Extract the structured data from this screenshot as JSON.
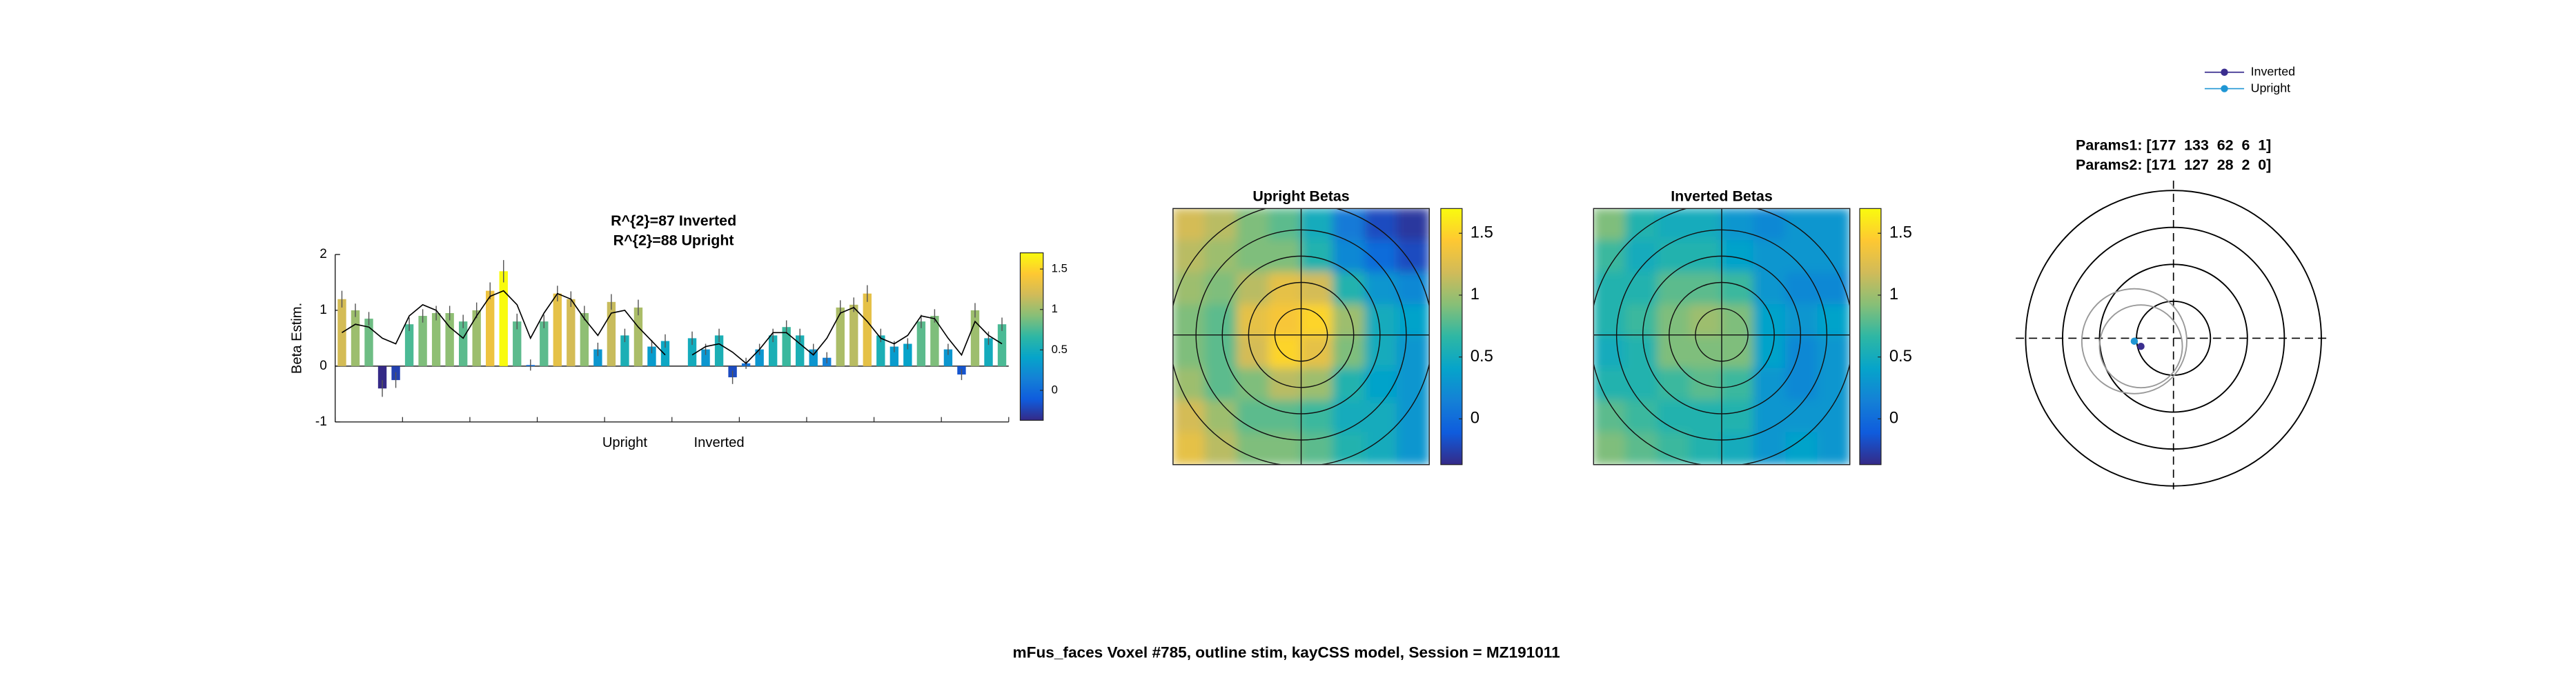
{
  "suptitle": "mFus_faces Voxel #785, outline stim, kayCSS model, Session = MZ191011",
  "chart_data": [
    {
      "type": "bar",
      "title": [
        "R^{2}=87 Inverted",
        "R^{2}=88 Upright"
      ],
      "ylabel": "Beta Estim.",
      "categories": [
        null,
        null,
        null,
        null,
        null,
        null,
        null,
        null,
        null,
        null,
        null,
        null,
        null,
        null,
        null,
        null,
        null,
        null,
        null,
        null,
        null,
        "Upright",
        null,
        null,
        null,
        null,
        null,
        null,
        "Inverted",
        null,
        null,
        null,
        null,
        null,
        null,
        null,
        null,
        null,
        null,
        null,
        null,
        null,
        null,
        null,
        null,
        null,
        null,
        null,
        null,
        null
      ],
      "series": [
        {
          "values": [
            1.2,
            1.0,
            0.85,
            -0.4,
            -0.25,
            0.75,
            0.9,
            0.95,
            0.95,
            0.8,
            1.0,
            1.35,
            1.7,
            0.8,
            0.02,
            0.8,
            1.3,
            1.2,
            0.95,
            0.3,
            1.15,
            0.55,
            1.05,
            0.35,
            0.45,
            null,
            0.5,
            0.3,
            0.55,
            -0.2,
            0.05,
            0.3,
            0.55,
            0.7,
            0.55,
            0.3,
            0.15,
            1.05,
            1.1,
            1.3,
            0.55,
            0.35,
            0.4,
            0.8,
            0.9,
            0.3,
            -0.15,
            1.0,
            0.5,
            0.75
          ],
          "errors": [
            0.15,
            0.12,
            0.12,
            0.15,
            0.14,
            0.12,
            0.12,
            0.13,
            0.13,
            0.12,
            0.14,
            0.15,
            0.2,
            0.14,
            0.1,
            0.12,
            0.14,
            0.14,
            0.13,
            0.12,
            0.14,
            0.12,
            0.14,
            0.12,
            0.12,
            null,
            0.12,
            0.1,
            0.12,
            0.12,
            0.1,
            0.1,
            0.12,
            0.12,
            0.12,
            0.1,
            0.1,
            0.13,
            0.13,
            0.15,
            0.12,
            0.1,
            0.1,
            0.12,
            0.12,
            0.1,
            0.1,
            0.13,
            0.12,
            0.12
          ]
        }
      ],
      "fit": {
        "color": "#000000",
        "values": [
          0.6,
          0.75,
          0.7,
          0.5,
          0.4,
          0.9,
          1.1,
          1.0,
          0.7,
          0.5,
          0.9,
          1.25,
          1.35,
          1.1,
          0.5,
          0.95,
          1.3,
          1.2,
          0.85,
          0.55,
          0.95,
          1.0,
          0.7,
          0.45,
          0.2,
          null,
          0.2,
          0.35,
          0.4,
          0.25,
          0.05,
          0.3,
          0.6,
          0.6,
          0.4,
          0.2,
          0.5,
          0.95,
          1.05,
          0.8,
          0.5,
          0.4,
          0.55,
          0.9,
          0.85,
          0.5,
          0.2,
          0.8,
          0.55,
          0.4
        ]
      },
      "ylim": [
        -1,
        2
      ],
      "yticks": [
        2,
        1,
        0,
        -1
      ],
      "colorbar": {
        "clim": [
          -0.37,
          1.7
        ],
        "ticks": [
          1.5,
          1,
          0.5,
          0
        ]
      },
      "colormap": [
        "#352a87",
        "#0f5cdd",
        "#1481d6",
        "#06a4ca",
        "#2eb7a4",
        "#87bf77",
        "#d1bb59",
        "#fec832",
        "#f9fb0e"
      ]
    },
    {
      "type": "heatmap",
      "title": "Upright Betas",
      "values": [
        [
          1.2,
          1.1,
          0.9,
          0.8,
          0.5,
          0.1,
          -0.2,
          -0.3
        ],
        [
          1.1,
          1.0,
          0.9,
          0.9,
          0.6,
          0.2,
          0.0,
          -0.2
        ],
        [
          1.0,
          0.9,
          1.1,
          1.3,
          1.2,
          0.6,
          0.3,
          0.2
        ],
        [
          0.9,
          0.8,
          1.3,
          1.4,
          1.5,
          1.0,
          0.5,
          0.4
        ],
        [
          0.9,
          0.8,
          1.2,
          1.5,
          1.3,
          0.9,
          0.5,
          0.3
        ],
        [
          1.0,
          0.8,
          0.9,
          1.1,
          1.0,
          0.6,
          0.4,
          0.3
        ],
        [
          1.2,
          1.0,
          0.8,
          0.8,
          0.7,
          0.5,
          0.5,
          0.3
        ],
        [
          1.3,
          1.1,
          0.9,
          0.9,
          0.8,
          0.6,
          0.5,
          0.3
        ]
      ],
      "colorbar": {
        "clim": [
          -0.37,
          1.7
        ],
        "ticks": [
          1.5,
          1,
          0.5,
          0
        ]
      },
      "colormap": [
        "#352a87",
        "#0f5cdd",
        "#1481d6",
        "#06a4ca",
        "#2eb7a4",
        "#87bf77",
        "#d1bb59",
        "#fec832",
        "#f9fb0e"
      ]
    },
    {
      "type": "heatmap",
      "title": "Inverted Betas",
      "values": [
        [
          0.9,
          0.6,
          0.5,
          0.5,
          0.3,
          0.2,
          0.3,
          0.3
        ],
        [
          0.7,
          0.5,
          0.6,
          0.6,
          0.4,
          0.3,
          0.3,
          0.3
        ],
        [
          0.6,
          0.6,
          0.8,
          0.8,
          0.7,
          0.3,
          0.2,
          0.2
        ],
        [
          0.6,
          0.7,
          0.9,
          1.0,
          0.9,
          0.4,
          0.3,
          0.4
        ],
        [
          0.5,
          0.6,
          0.9,
          0.9,
          0.9,
          0.4,
          0.2,
          0.3
        ],
        [
          0.6,
          0.6,
          0.7,
          0.8,
          0.7,
          0.3,
          0.2,
          0.3
        ],
        [
          0.8,
          0.7,
          0.6,
          0.6,
          0.6,
          0.3,
          0.3,
          0.3
        ],
        [
          0.9,
          0.8,
          0.7,
          0.6,
          0.5,
          0.3,
          0.4,
          0.3
        ]
      ],
      "colorbar": {
        "clim": [
          -0.37,
          1.7
        ],
        "ticks": [
          1.5,
          1,
          0.5,
          0
        ]
      },
      "colormap": [
        "#352a87",
        "#0f5cdd",
        "#1481d6",
        "#06a4ca",
        "#2eb7a4",
        "#87bf77",
        "#d1bb59",
        "#fec832",
        "#f9fb0e"
      ]
    },
    {
      "type": "polar",
      "title": [
        "Params1: [177  133  62  6  1]",
        "Params2: [171  127  28  2  0]"
      ],
      "series": [
        {
          "name": "Inverted",
          "color": "#3b2e8f",
          "x": [
            -4.4
          ],
          "y": [
            -1.1
          ],
          "size": [
            5.6
          ]
        },
        {
          "name": "Upright",
          "color": "#1f96d4",
          "x": [
            -5.3
          ],
          "y": [
            -0.4
          ],
          "size": [
            7.1
          ]
        }
      ],
      "rlim": [
        0,
        20
      ],
      "rticks": [
        5,
        10,
        15,
        20
      ]
    }
  ]
}
